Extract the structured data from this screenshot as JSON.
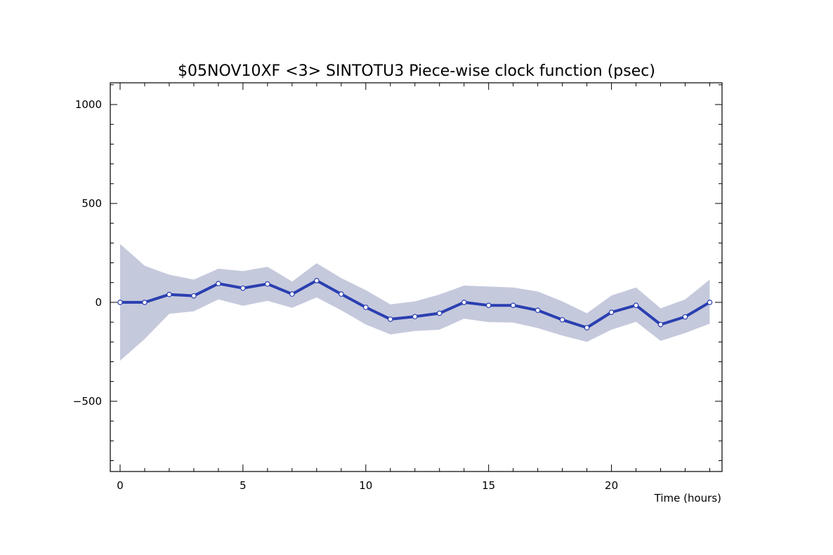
{
  "chart_data": {
    "type": "line",
    "title": "$05NOV10XF <3>  SINTOTU3  Piece-wise clock function (psec)",
    "xlabel": "Time (hours)",
    "ylabel": "",
    "xlim": [
      -0.4,
      24.5
    ],
    "ylim": [
      -855,
      1110
    ],
    "x_ticks": [
      0,
      5,
      10,
      15,
      20
    ],
    "x_tick_labels": [
      "0",
      "5",
      "10",
      "15",
      "20"
    ],
    "y_ticks": [
      1000,
      500,
      0,
      -500
    ],
    "y_tick_labels": [
      "1000",
      "500",
      "0",
      "−500"
    ],
    "x_minor_step": 1,
    "y_minor_step": 100,
    "grid": false,
    "series": [
      {
        "x": [
          0,
          1,
          2,
          3,
          4,
          5,
          6,
          7,
          8,
          9,
          10,
          11,
          12,
          13,
          14,
          15,
          16,
          17,
          18,
          19,
          20,
          21,
          22,
          23,
          24
        ],
        "values": [
          0,
          0,
          40,
          33,
          95,
          72,
          93,
          42,
          110,
          42,
          -25,
          -85,
          -72,
          -55,
          0,
          -15,
          -15,
          -40,
          -88,
          -128,
          -50,
          -15,
          -112,
          -73,
          0
        ],
        "band_upper": [
          295,
          185,
          140,
          115,
          170,
          158,
          180,
          105,
          198,
          123,
          62,
          -10,
          5,
          40,
          85,
          80,
          75,
          55,
          5,
          -55,
          35,
          75,
          -30,
          15,
          115
        ],
        "band_lower": [
          -295,
          -185,
          -58,
          -45,
          15,
          -17,
          8,
          -28,
          25,
          -40,
          -112,
          -162,
          -145,
          -138,
          -82,
          -100,
          -102,
          -130,
          -168,
          -200,
          -138,
          -98,
          -195,
          -155,
          -108
        ]
      }
    ],
    "colors": {
      "line": "#2a3fb0",
      "marker_fill": "#ffffff",
      "band": "#c5c9dc",
      "axis": "#000000"
    }
  }
}
